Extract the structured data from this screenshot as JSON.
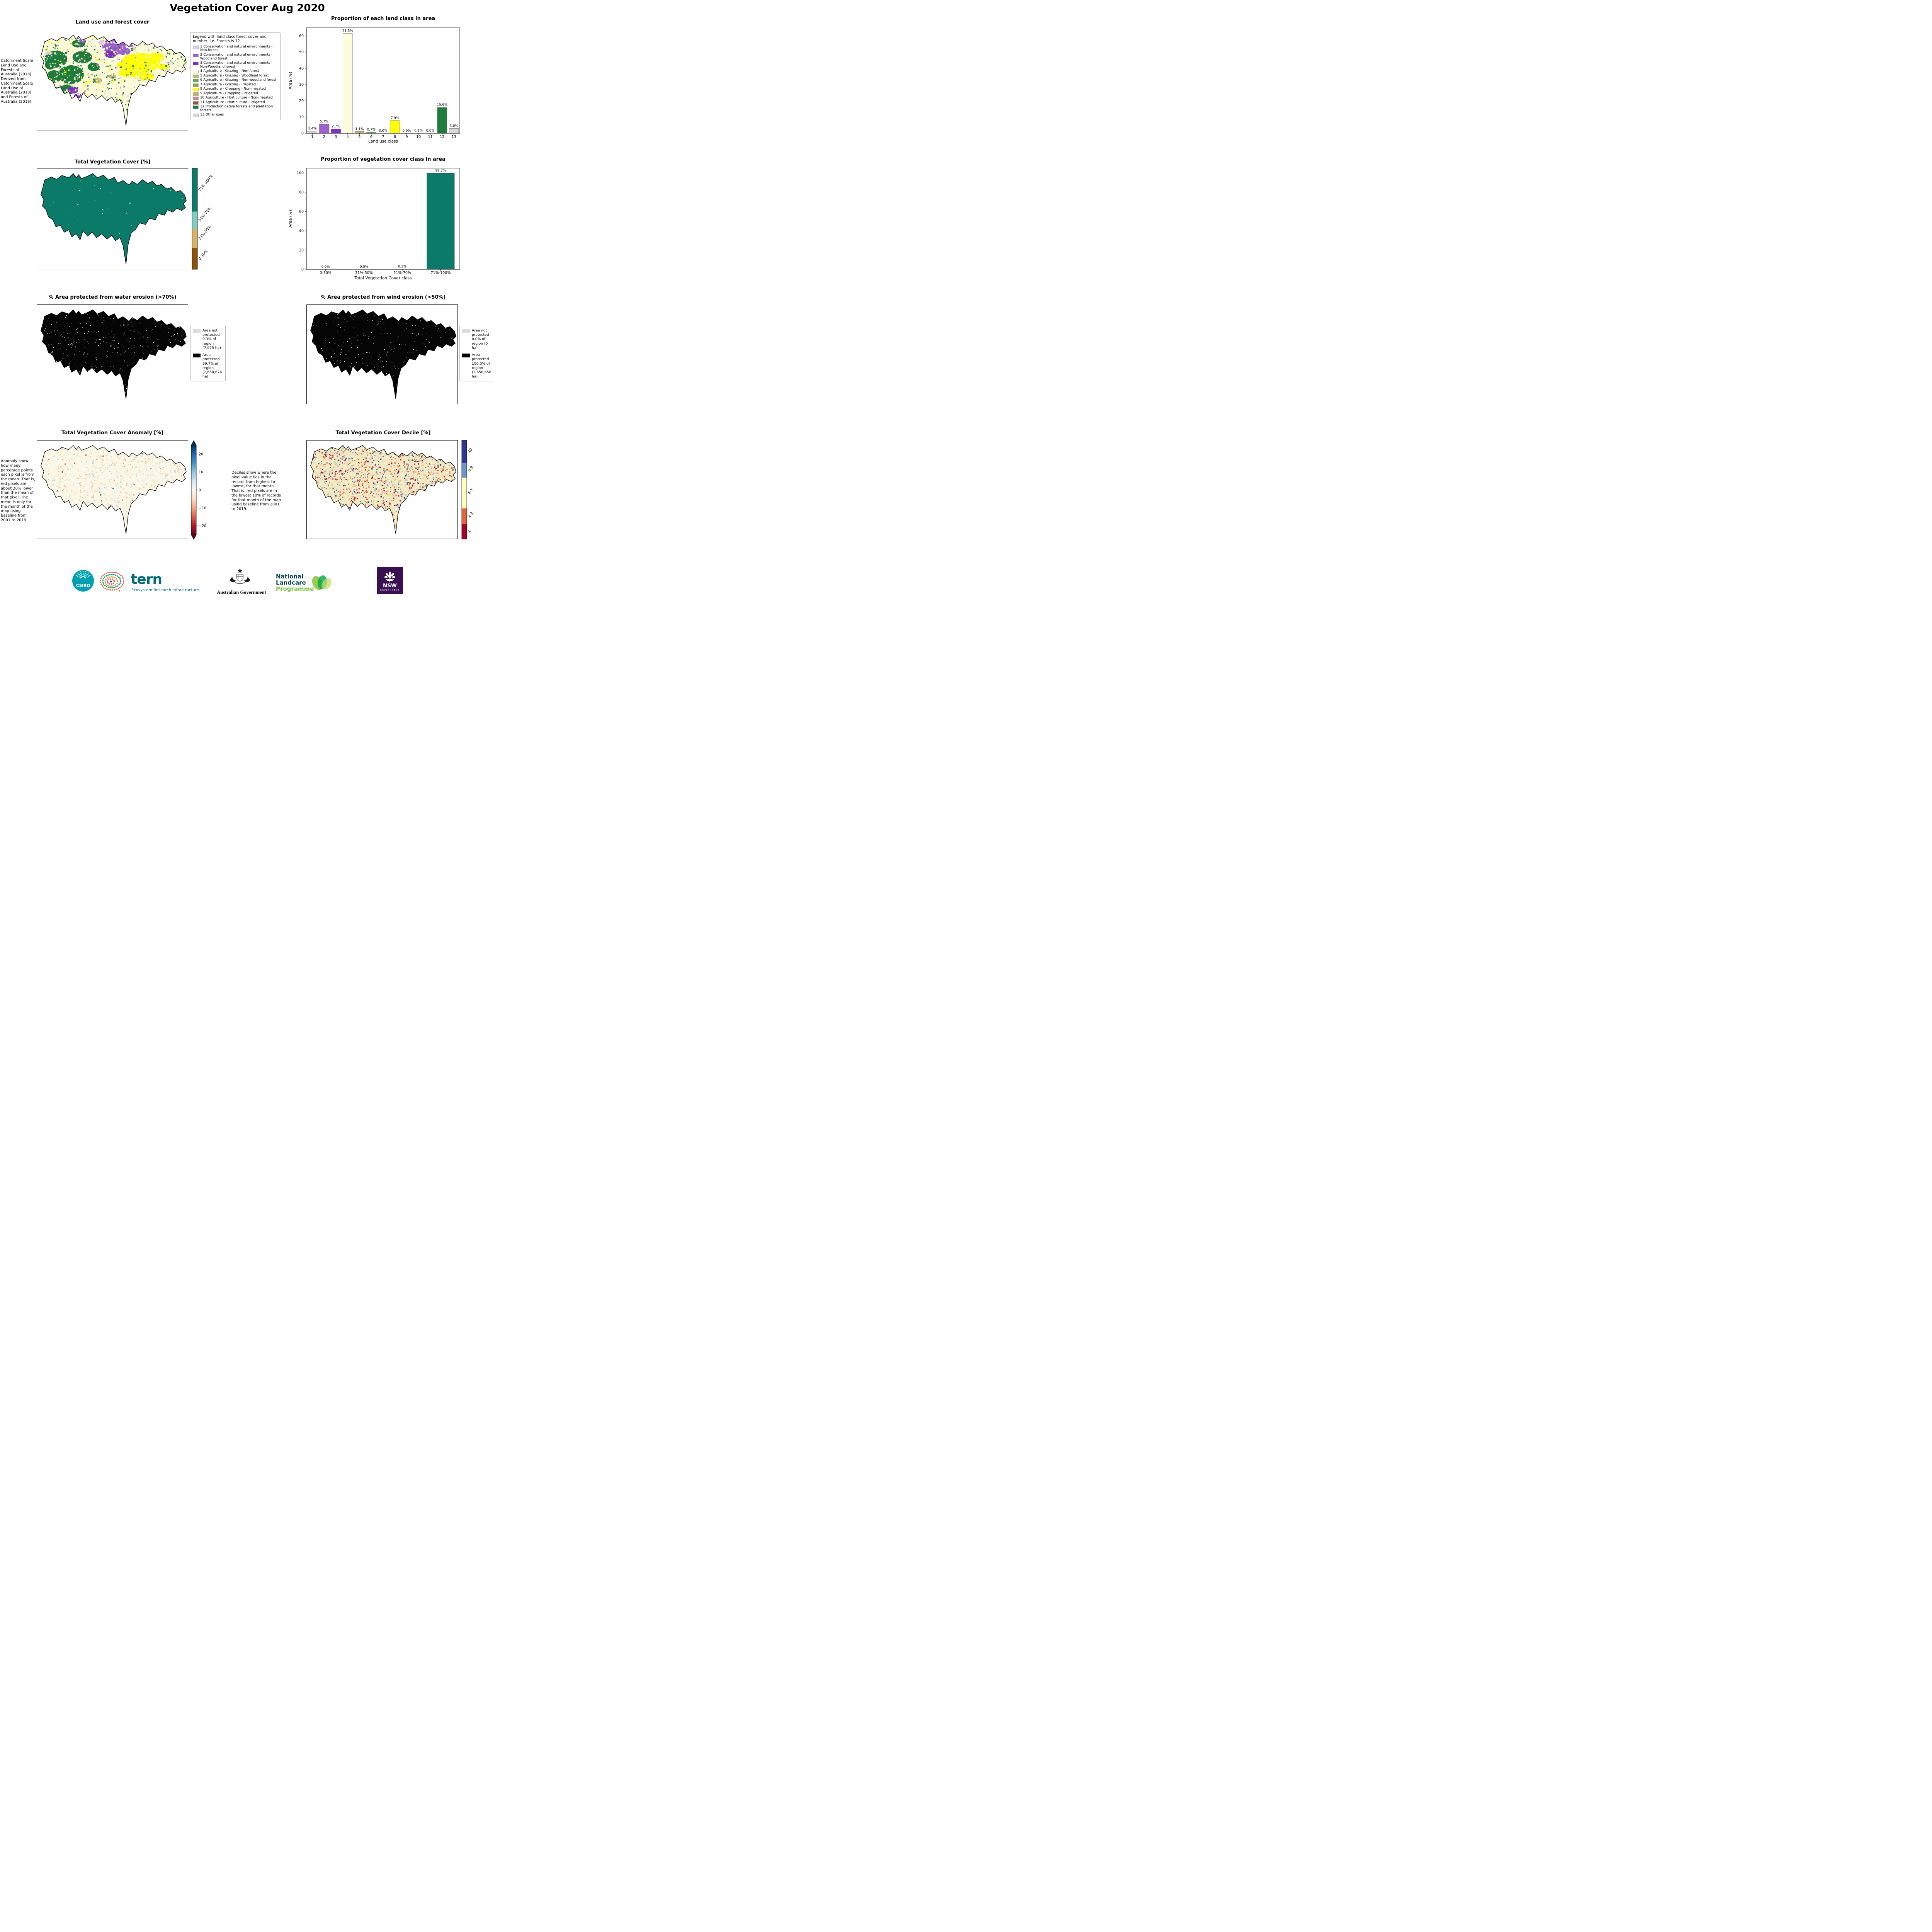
{
  "page": {
    "title": "Vegetation Cover Aug 2020"
  },
  "chart_data": [
    {
      "id": "land-class-area",
      "type": "bar",
      "title": "Proportion of each land class in area",
      "xlabel": "Land use class",
      "ylabel": "Area (%)",
      "categories": [
        "1",
        "2",
        "3",
        "4",
        "5",
        "6",
        "7",
        "8",
        "9",
        "10",
        "11",
        "12",
        "13"
      ],
      "values": [
        1.4,
        5.7,
        2.7,
        61.5,
        1.1,
        0.7,
        0.0,
        7.9,
        0.0,
        0.1,
        0.0,
        15.9,
        3.0
      ],
      "labels": [
        "1.4%",
        "5.7%",
        "2.7%",
        "61.5%",
        "1.1%",
        "0.7%",
        "0.0%",
        "7.9%",
        "0.0%",
        "0.1%",
        "0.0%",
        "15.9%",
        "3.0%"
      ],
      "colors": [
        "#DCC8E8",
        "#9E5FD2",
        "#7D2EC8",
        "#FCFCDC",
        "#BDB76B",
        "#5BAD4F",
        "#96A03E",
        "#FFFF00",
        "#C9B34A",
        "#BC8F8F",
        "#A0522D",
        "#1E7B3C",
        "#D9D9D9"
      ],
      "ylim": [
        0,
        65
      ],
      "yticks": [
        0,
        10,
        20,
        30,
        40,
        50,
        60
      ],
      "bar_frac": 0.8,
      "grid": false,
      "legend_position": "none"
    },
    {
      "id": "veg-cover-class-area",
      "type": "bar",
      "title": "Proportion of vegetation cover class in area",
      "xlabel": "Total Vegetation Cover class",
      "ylabel": "Area (%)",
      "categories": [
        "0-30%",
        "31%-50%",
        "51%-70%",
        "71%-100%"
      ],
      "values": [
        0.0,
        0.0,
        0.3,
        99.7
      ],
      "labels": [
        "0.0%",
        "0.0%",
        "0.3%",
        "99.7%"
      ],
      "colors": [
        "#8C510A",
        "#D8B365",
        "#80CDC1",
        "#0B7A68"
      ],
      "ylim": [
        0,
        105
      ],
      "yticks": [
        0,
        20,
        40,
        60,
        80,
        100
      ],
      "bar_frac": 0.72,
      "grid": false,
      "legend_position": "none"
    }
  ],
  "panels": {
    "land_use_map": {
      "title": "Land use and forest cover",
      "annotation": "Catchment Scale Land Use and Forests of Australia (2018) Derived from Catchment Scale Land Use of Australia (2018) and Forests of Australia (2018)",
      "legend_title": "Legend with land class forest cover and number, i.e. Forests is 12",
      "legend_items": [
        {
          "label": "1 Conservation and natural environments - Non-forest",
          "color": "#DCC8E8"
        },
        {
          "label": "2 Conservation and natural environments - Woodland forest",
          "color": "#9E5FD2"
        },
        {
          "label": "3 Conservation and natural environments - Non-Woodland forest",
          "color": "#7D2EC8"
        },
        {
          "label": "4 Agriculture - Grazing - Non-forest",
          "color": "#FCFCDC"
        },
        {
          "label": "5 Agriculture - Grazing - Woodland forest",
          "color": "#BDB76B"
        },
        {
          "label": "6 Agriculture - Grazing - Non-woodland forest",
          "color": "#5BAD4F"
        },
        {
          "label": "7 Agriculture - Grazing - Irrigated",
          "color": "#96A03E"
        },
        {
          "label": "8 Agriculture - Cropping - Non-irrigated",
          "color": "#FFFF00"
        },
        {
          "label": "9 Agriculture - Cropping - Irrigated",
          "color": "#C9B34A"
        },
        {
          "label": "10 Agriculture - Horticulture - Non-irrigated",
          "color": "#BC8F8F"
        },
        {
          "label": "11 Agriculture - Horticulture - Irrigated",
          "color": "#A0522D"
        },
        {
          "label": "12 Production native forests and plantation forests",
          "color": "#1E7B3C"
        },
        {
          "label": "13 Other uses",
          "color": "#D9D9D9"
        }
      ]
    },
    "veg_cover_map": {
      "title": "Total Vegetation Cover [%]",
      "colorbar": [
        {
          "label": "71%-100%",
          "color": "#0B7A68",
          "frac": 0.43
        },
        {
          "label": "51%-70%",
          "color": "#80CDC1",
          "frac": 0.17
        },
        {
          "label": "31%-50%",
          "color": "#D8B365",
          "frac": 0.19
        },
        {
          "label": "0-30%",
          "color": "#8C510A",
          "frac": 0.21
        }
      ]
    },
    "water_erosion_map": {
      "title": "% Area protected from water erosion (>70%)",
      "legend": {
        "not_protected": "Area not protected 0.3% of region (7,975 ha)",
        "not_protected_color": "#DCDCDC",
        "protected": "Area protected 99.7% of region (2,650,674 ha)",
        "protected_color": "#000000"
      }
    },
    "wind_erosion_map": {
      "title": "% Area protected from wind erosion (>50%)",
      "legend": {
        "not_protected": "Area not protected 0.0% of region (0 ha)",
        "not_protected_color": "#DCDCDC",
        "protected": "Area protected 100.0% of region (2,658,650 ha)",
        "protected_color": "#000000"
      }
    },
    "anomaly_map": {
      "title": "Total Vegetation Cover Anomaly [%]",
      "annotation": "Anomaly show how many percetage points each pixel is from the mean. That is, red pixels are about 20% lower than the mean of that pixel. The mean is only for the month of the map using baseline from 2001 to 2019.",
      "colorbar_range": [
        -25,
        25
      ],
      "colorbar_ticks": [
        {
          "v": 20,
          "label": "20"
        },
        {
          "v": 10,
          "label": "10"
        },
        {
          "v": 0,
          "label": "0"
        },
        {
          "v": -10,
          "label": "−10"
        },
        {
          "v": -20,
          "label": "−20"
        }
      ]
    },
    "decile_map": {
      "title": "Total Vegetation Cover Decile [%]",
      "annotation": "Deciles show where the pixel value lies in the record, from highest to lowest, for that month. That is, red pixels are in the lowest 10% of records for that month of the map using baseline from 2001 to 2019.",
      "colorbar": [
        {
          "label": "10",
          "color": "#313695",
          "frac": 0.23
        },
        {
          "label": "8-9",
          "color": "#6E94C9",
          "frac": 0.15
        },
        {
          "label": "4-7",
          "color": "#FFFFBF",
          "frac": 0.31
        },
        {
          "label": "2-3",
          "color": "#E4653C",
          "frac": 0.16
        },
        {
          "label": "1",
          "color": "#A50026",
          "frac": 0.15
        }
      ]
    }
  },
  "footer": {
    "csiro_label": "CSIRO",
    "tern_name": "tern",
    "tern_subtitle": "Ecosystem Research Infrastructure",
    "aus_gov_label": "Australian Government",
    "landcare_line1": "National",
    "landcare_line2": "Landcare",
    "landcare_line3": "Programme",
    "nsw_name": "NSW",
    "nsw_sub": "GOVERNMENT"
  }
}
